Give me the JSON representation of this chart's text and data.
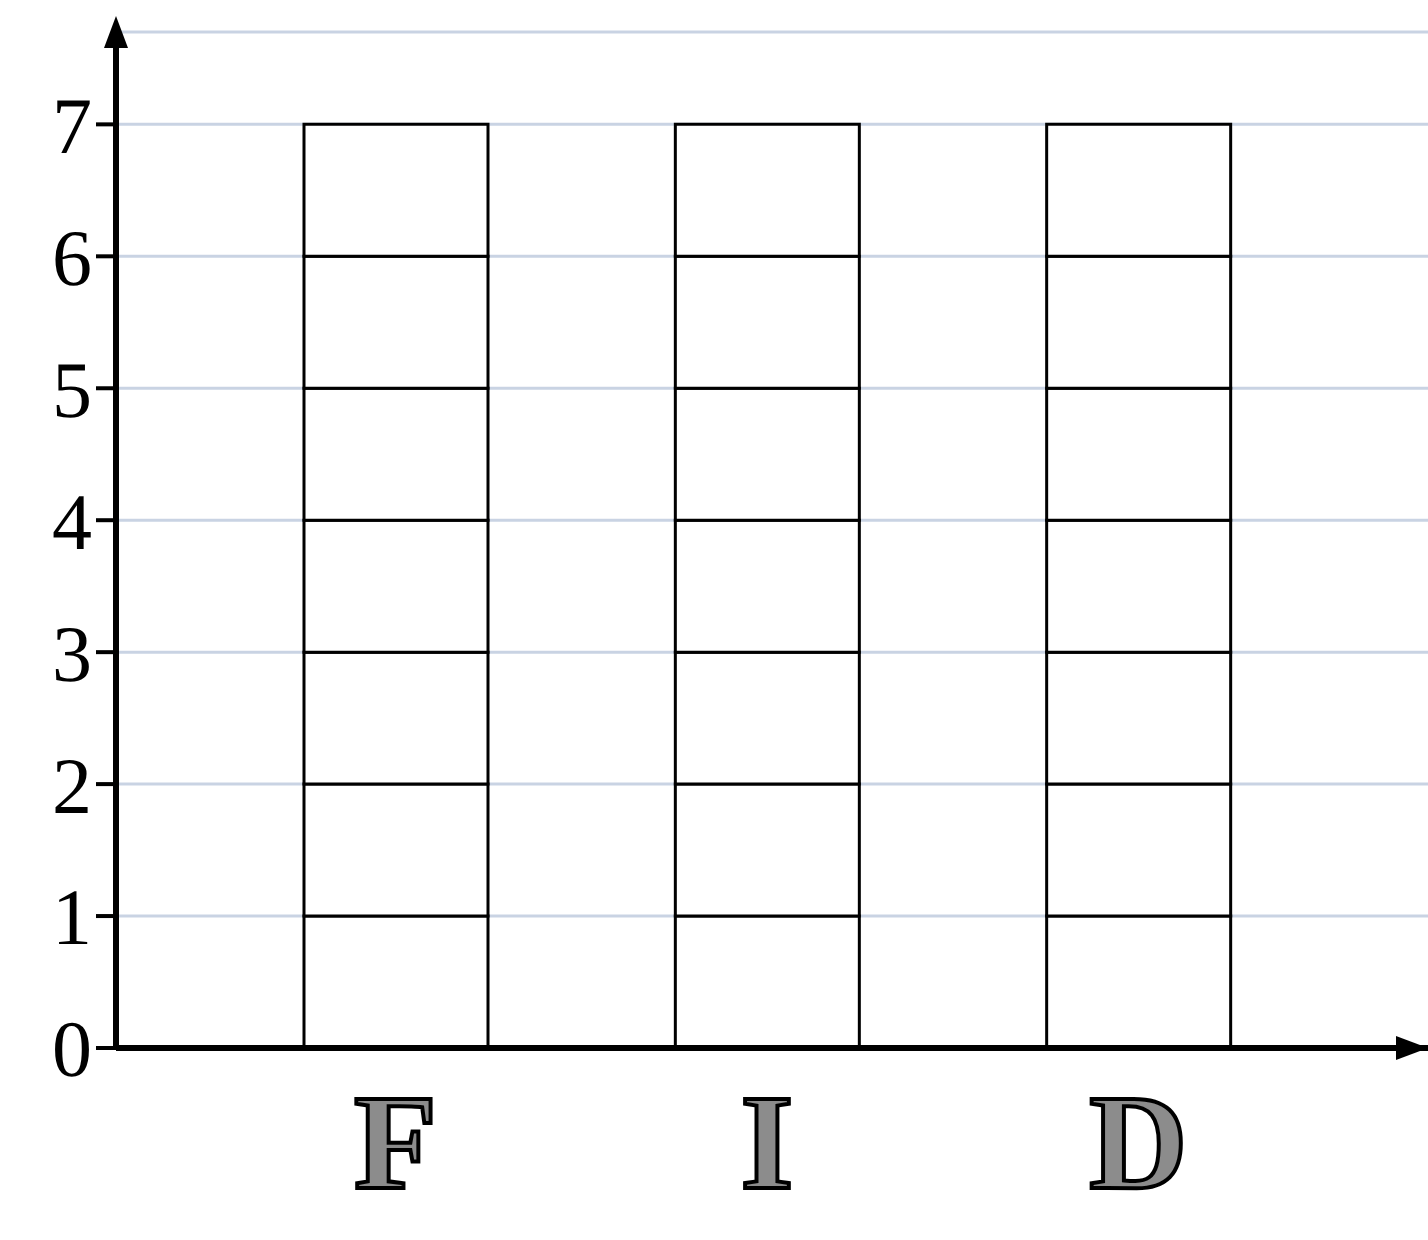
{
  "chart_data": {
    "type": "bar",
    "categories": [
      "F",
      "I",
      "D"
    ],
    "stacked": true,
    "series": [
      {
        "color": "#ffffff",
        "values": [
          1,
          1,
          1
        ]
      },
      {
        "color": "#ffffff",
        "values": [
          1,
          1,
          1
        ]
      },
      {
        "color": "#ffffff",
        "values": [
          1,
          1,
          1
        ]
      },
      {
        "color": "#ffffff",
        "values": [
          1,
          1,
          1
        ]
      },
      {
        "color": "#ffffff",
        "values": [
          1,
          1,
          1
        ]
      },
      {
        "color": "#ffffff",
        "values": [
          1,
          1,
          1
        ]
      },
      {
        "color": "#ffffff",
        "values": [
          1,
          1,
          1
        ]
      }
    ],
    "ylim": [
      0,
      7.7
    ],
    "yticks": [
      0,
      1,
      2,
      3,
      4,
      5,
      6,
      7
    ],
    "grid": "y"
  }
}
